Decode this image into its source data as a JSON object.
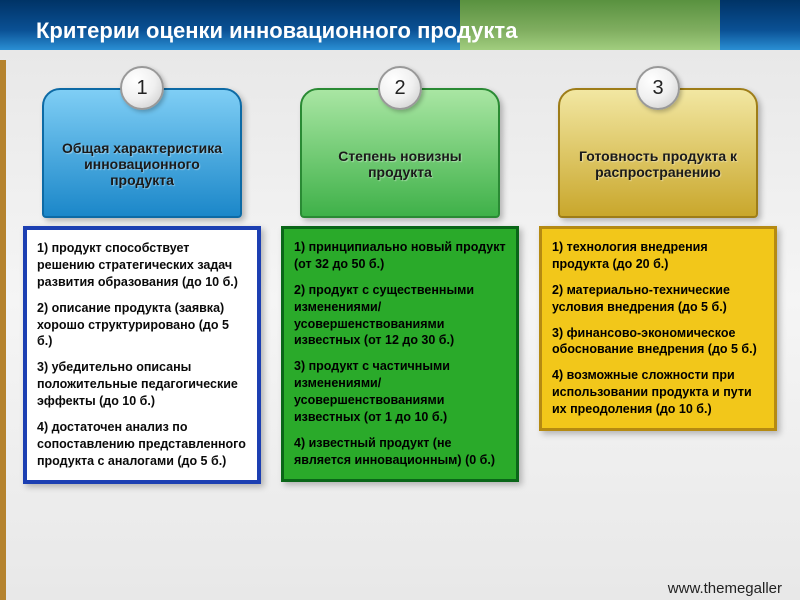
{
  "title": "Критерии оценки инновационного продукта",
  "footer": "www.themegaller",
  "columns": [
    {
      "number": "1",
      "heading": "Общая характеристика инновационного продукта",
      "tab_gradient_top": "#7fcef5",
      "tab_gradient_bottom": "#1b87c9",
      "tab_border": "#0d6aa5",
      "panel_bg": "#ffffff",
      "panel_border": "#1c3fb2",
      "panel_border_width": "4px",
      "panel_text_color": "#0a0a0a",
      "items": [
        "1) продукт способствует решению стратегических задач развития образования (до 10 б.)",
        "2) описание продукта (заявка) хорошо структурировано (до 5 б.)",
        "3) убедительно описаны положительные педагогические эффекты (до 10 б.)",
        "4) достаточен анализ по сопоставлению представленного продукта с аналогами (до 5 б.)"
      ]
    },
    {
      "number": "2",
      "heading": "Степень новизны продукта",
      "tab_gradient_top": "#a9e6a3",
      "tab_gradient_bottom": "#3fb149",
      "tab_border": "#2a8a34",
      "panel_bg": "#2aaa2a",
      "panel_border": "#0a6618",
      "panel_border_width": "3px",
      "panel_text_color": "#000000",
      "items": [
        "1) принципиально новый продукт (от 32 до 50 б.)",
        "2) продукт с существенными изменениями/ усовершенствованиями известных (от 12 до 30 б.)",
        "3) продукт с частичными изменениями/ усовершенствованиями известных (от 1 до 10 б.)",
        "4) известный продукт (не является инновационным) (0 б.)"
      ]
    },
    {
      "number": "3",
      "heading": "Готовность продукта к распространению",
      "tab_gradient_top": "#f2e7a2",
      "tab_gradient_bottom": "#c9a72c",
      "tab_border": "#9e7d18",
      "panel_bg": "#f2c71a",
      "panel_border": "#b58a12",
      "panel_border_width": "3px",
      "panel_text_color": "#000000",
      "items": [
        "1) технология внедрения продукта (до 20 б.)",
        "2) материально-технические условия внедрения (до 5 б.)",
        "3) финансово-экономическое обоснование внедрения (до 5 б.)",
        "4) возможные сложности при использовании продукта и пути их преодоления (до 10 б.)"
      ]
    }
  ]
}
